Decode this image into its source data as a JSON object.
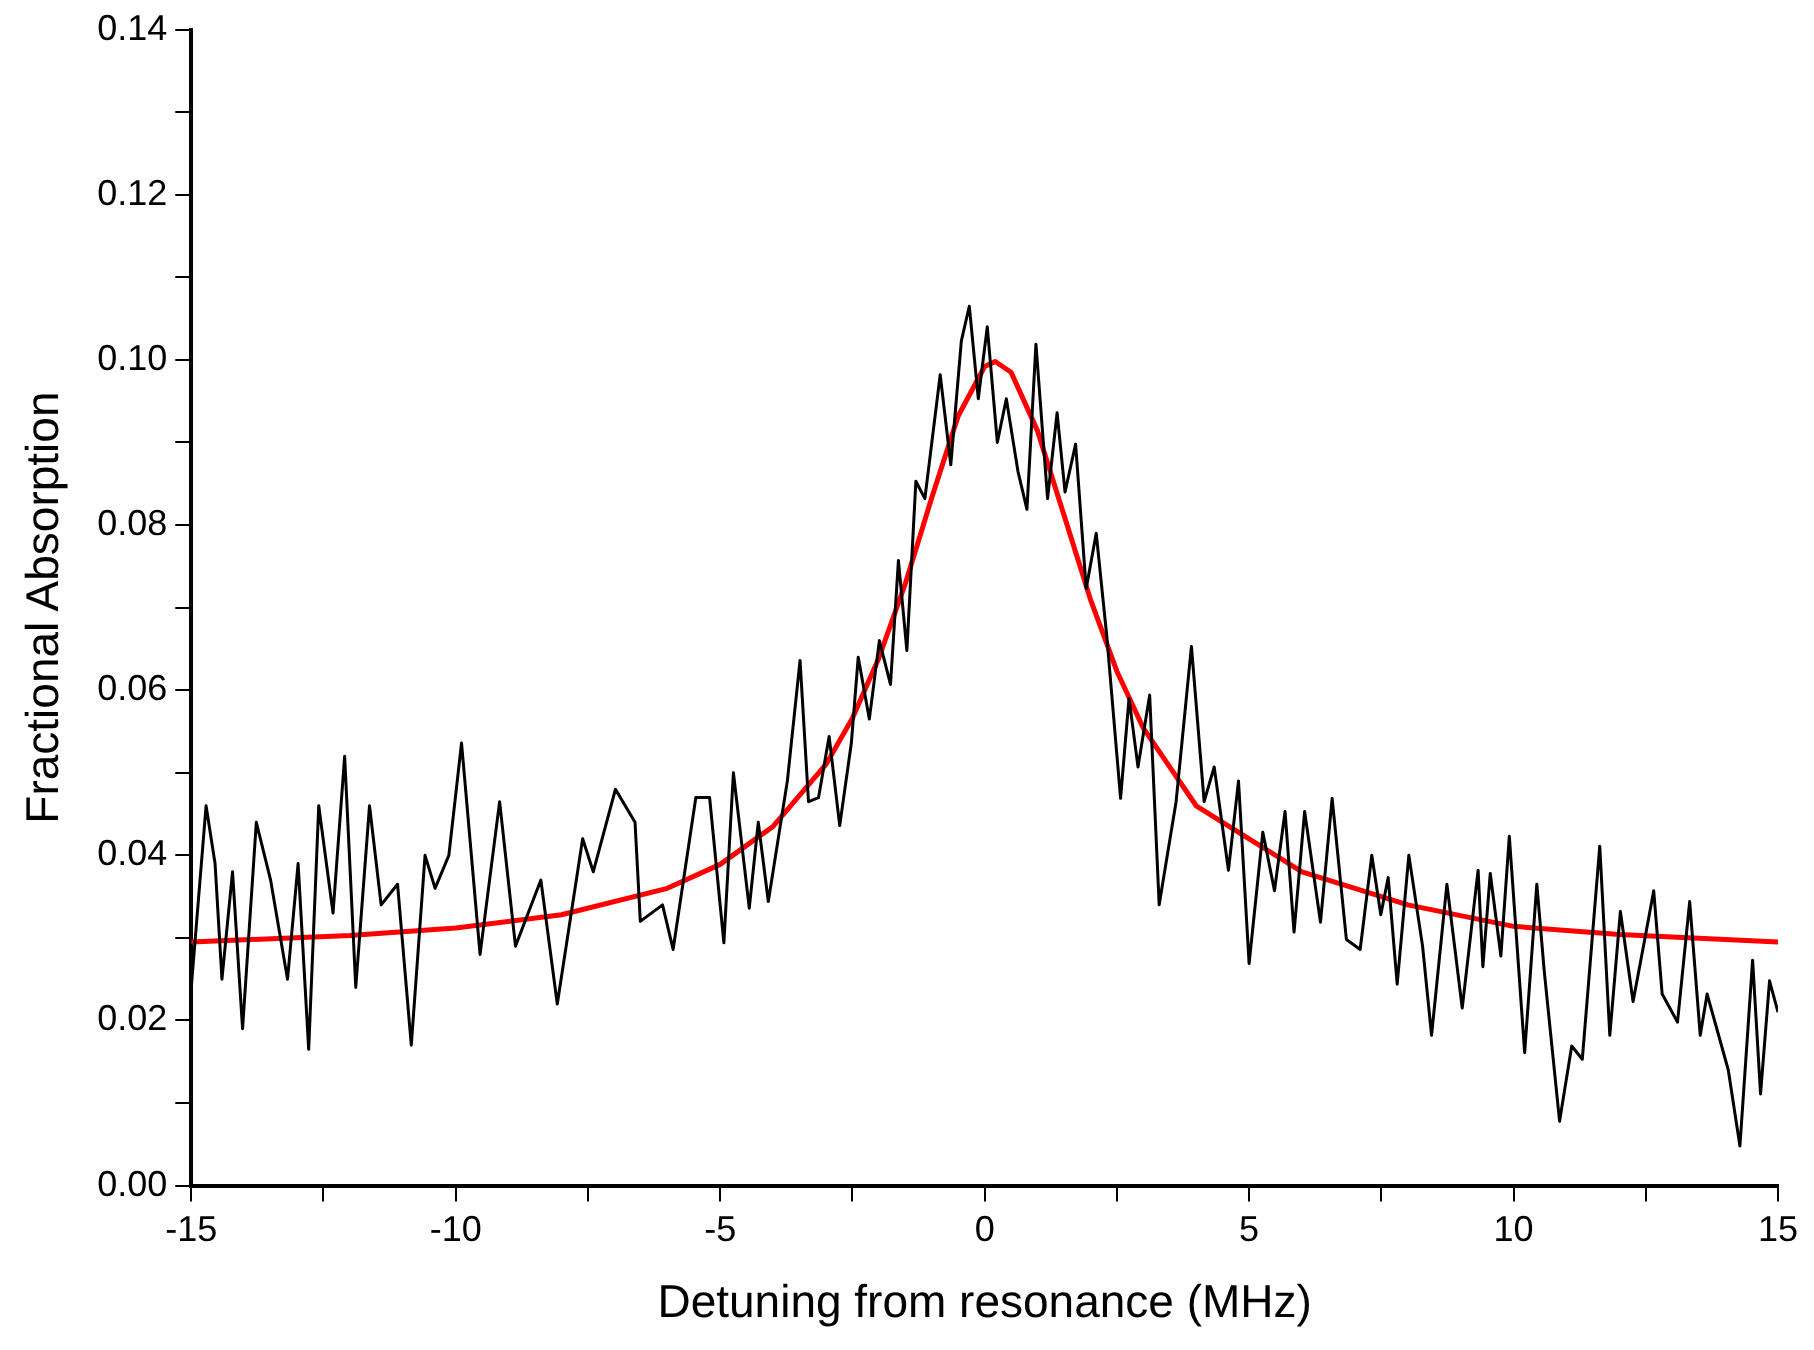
{
  "chart_data": {
    "type": "line",
    "xlabel": "Detuning from resonance (MHz)",
    "ylabel": "Fractional Absorption",
    "xlim": [
      -15,
      15
    ],
    "ylim": [
      0,
      0.14
    ],
    "xticks": [
      -15,
      {
        "value": -12.5,
        "label": null
      },
      -10,
      {
        "value": -7.5,
        "label": null
      },
      -5,
      {
        "value": -2.5,
        "label": null
      },
      0,
      {
        "value": 2.5,
        "label": null
      },
      5,
      {
        "value": 7.5,
        "label": null
      },
      10,
      {
        "value": 12.5,
        "label": null
      },
      15
    ],
    "yticks": [
      {
        "value": 0,
        "label": "0.00"
      },
      {
        "value": 0.01,
        "label": null
      },
      {
        "value": 0.02,
        "label": "0.02"
      },
      {
        "value": 0.03,
        "label": null
      },
      {
        "value": 0.04,
        "label": "0.04"
      },
      {
        "value": 0.05,
        "label": null
      },
      {
        "value": 0.06,
        "label": "0.06"
      },
      {
        "value": 0.07,
        "label": null
      },
      {
        "value": 0.08,
        "label": "0.08"
      },
      {
        "value": 0.09,
        "label": null
      },
      {
        "value": 0.1,
        "label": "0.10"
      },
      {
        "value": 0.11,
        "label": null
      },
      {
        "value": 0.12,
        "label": "0.12"
      },
      {
        "value": 0.13,
        "label": null
      },
      {
        "value": 0.14,
        "label": "0.14"
      }
    ],
    "grid": false,
    "legend": false,
    "marker": "none",
    "line_style": "solid",
    "series": [
      {
        "color": "#000000",
        "x": [
          -15.0,
          -14.72,
          -14.55,
          -14.42,
          -14.22,
          -14.03,
          -13.77,
          -13.5,
          -13.18,
          -12.98,
          -12.78,
          -12.59,
          -12.32,
          -12.1,
          -11.89,
          -11.63,
          -11.41,
          -11.1,
          -10.84,
          -10.58,
          -10.39,
          -10.13,
          -9.89,
          -9.54,
          -9.17,
          -8.87,
          -8.39,
          -8.08,
          -7.6,
          -7.4,
          -6.98,
          -6.61,
          -6.51,
          -6.09,
          -5.89,
          -5.46,
          -5.2,
          -4.93,
          -4.75,
          -4.45,
          -4.28,
          -4.09,
          -3.73,
          -3.49,
          -3.33,
          -3.14,
          -2.94,
          -2.74,
          -2.52,
          -2.39,
          -2.18,
          -1.99,
          -1.78,
          -1.63,
          -1.47,
          -1.3,
          -1.13,
          -0.84,
          -0.64,
          -0.44,
          -0.29,
          -0.12,
          0.05,
          0.24,
          0.41,
          0.63,
          0.8,
          0.97,
          1.19,
          1.37,
          1.52,
          1.72,
          1.92,
          2.11,
          2.31,
          2.57,
          2.73,
          2.9,
          3.12,
          3.3,
          3.62,
          3.91,
          4.15,
          4.34,
          4.61,
          4.8,
          5.0,
          5.26,
          5.48,
          5.68,
          5.85,
          6.05,
          6.35,
          6.57,
          6.84,
          7.1,
          7.32,
          7.49,
          7.63,
          7.8,
          8.02,
          8.28,
          8.45,
          8.74,
          9.03,
          9.33,
          9.42,
          9.56,
          9.76,
          9.92,
          10.21,
          10.44,
          10.58,
          10.87,
          11.1,
          11.3,
          11.63,
          11.82,
          12.02,
          12.26,
          12.48,
          12.65,
          12.81,
          13.1,
          13.33,
          13.53,
          13.66,
          13.86,
          14.06,
          14.28,
          14.52,
          14.67,
          14.84,
          15.0
        ],
        "values": [
          0.024,
          0.046,
          0.039,
          0.025,
          0.038,
          0.019,
          0.044,
          0.037,
          0.025,
          0.039,
          0.0165,
          0.046,
          0.033,
          0.052,
          0.024,
          0.046,
          0.034,
          0.0365,
          0.017,
          0.04,
          0.036,
          0.04,
          0.0536,
          0.028,
          0.0465,
          0.029,
          0.037,
          0.022,
          0.042,
          0.038,
          0.048,
          0.044,
          0.032,
          0.034,
          0.0286,
          0.047,
          0.047,
          0.0294,
          0.05,
          0.0336,
          0.044,
          0.0344,
          0.049,
          0.0636,
          0.0465,
          0.047,
          0.0544,
          0.0436,
          0.0536,
          0.064,
          0.0565,
          0.066,
          0.0607,
          0.0757,
          0.0648,
          0.0853,
          0.0832,
          0.0982,
          0.0873,
          0.1023,
          0.1065,
          0.0953,
          0.104,
          0.09,
          0.0953,
          0.0865,
          0.0819,
          0.1019,
          0.0832,
          0.0936,
          0.084,
          0.0898,
          0.0723,
          0.079,
          0.0665,
          0.0469,
          0.059,
          0.0507,
          0.0594,
          0.034,
          0.0465,
          0.0653,
          0.0465,
          0.0507,
          0.0382,
          0.049,
          0.0269,
          0.0428,
          0.0357,
          0.0453,
          0.0307,
          0.0453,
          0.0319,
          0.0469,
          0.0298,
          0.0286,
          0.04,
          0.0328,
          0.0373,
          0.0244,
          0.04,
          0.029,
          0.0182,
          0.0365,
          0.0215,
          0.0382,
          0.0265,
          0.0378,
          0.0278,
          0.0423,
          0.0161,
          0.0365,
          0.026,
          0.0078,
          0.0169,
          0.0153,
          0.0411,
          0.0182,
          0.0332,
          0.0223,
          0.0298,
          0.0357,
          0.0232,
          0.0198,
          0.0344,
          0.0182,
          0.0232,
          0.0186,
          0.014,
          0.0048,
          0.0273,
          0.0111,
          0.0248,
          0.021
        ]
      },
      {
        "color": "#ff0000",
        "x": [
          -15,
          -12,
          -10,
          -8,
          -6,
          -5,
          -4,
          -3,
          -2.5,
          -2,
          -1.5,
          -1,
          -0.5,
          0,
          0.2,
          0.5,
          1,
          1.5,
          2,
          2.5,
          3,
          4,
          5,
          6,
          8,
          10,
          12,
          15
        ],
        "values": [
          0.0295,
          0.0303,
          0.0312,
          0.0328,
          0.036,
          0.0389,
          0.0435,
          0.051,
          0.0566,
          0.0639,
          0.0729,
          0.0833,
          0.0932,
          0.0992,
          0.0998,
          0.0985,
          0.0914,
          0.0812,
          0.071,
          0.0623,
          0.0554,
          0.046,
          0.042,
          0.038,
          0.034,
          0.0314,
          0.0304,
          0.0295
        ]
      }
    ]
  }
}
